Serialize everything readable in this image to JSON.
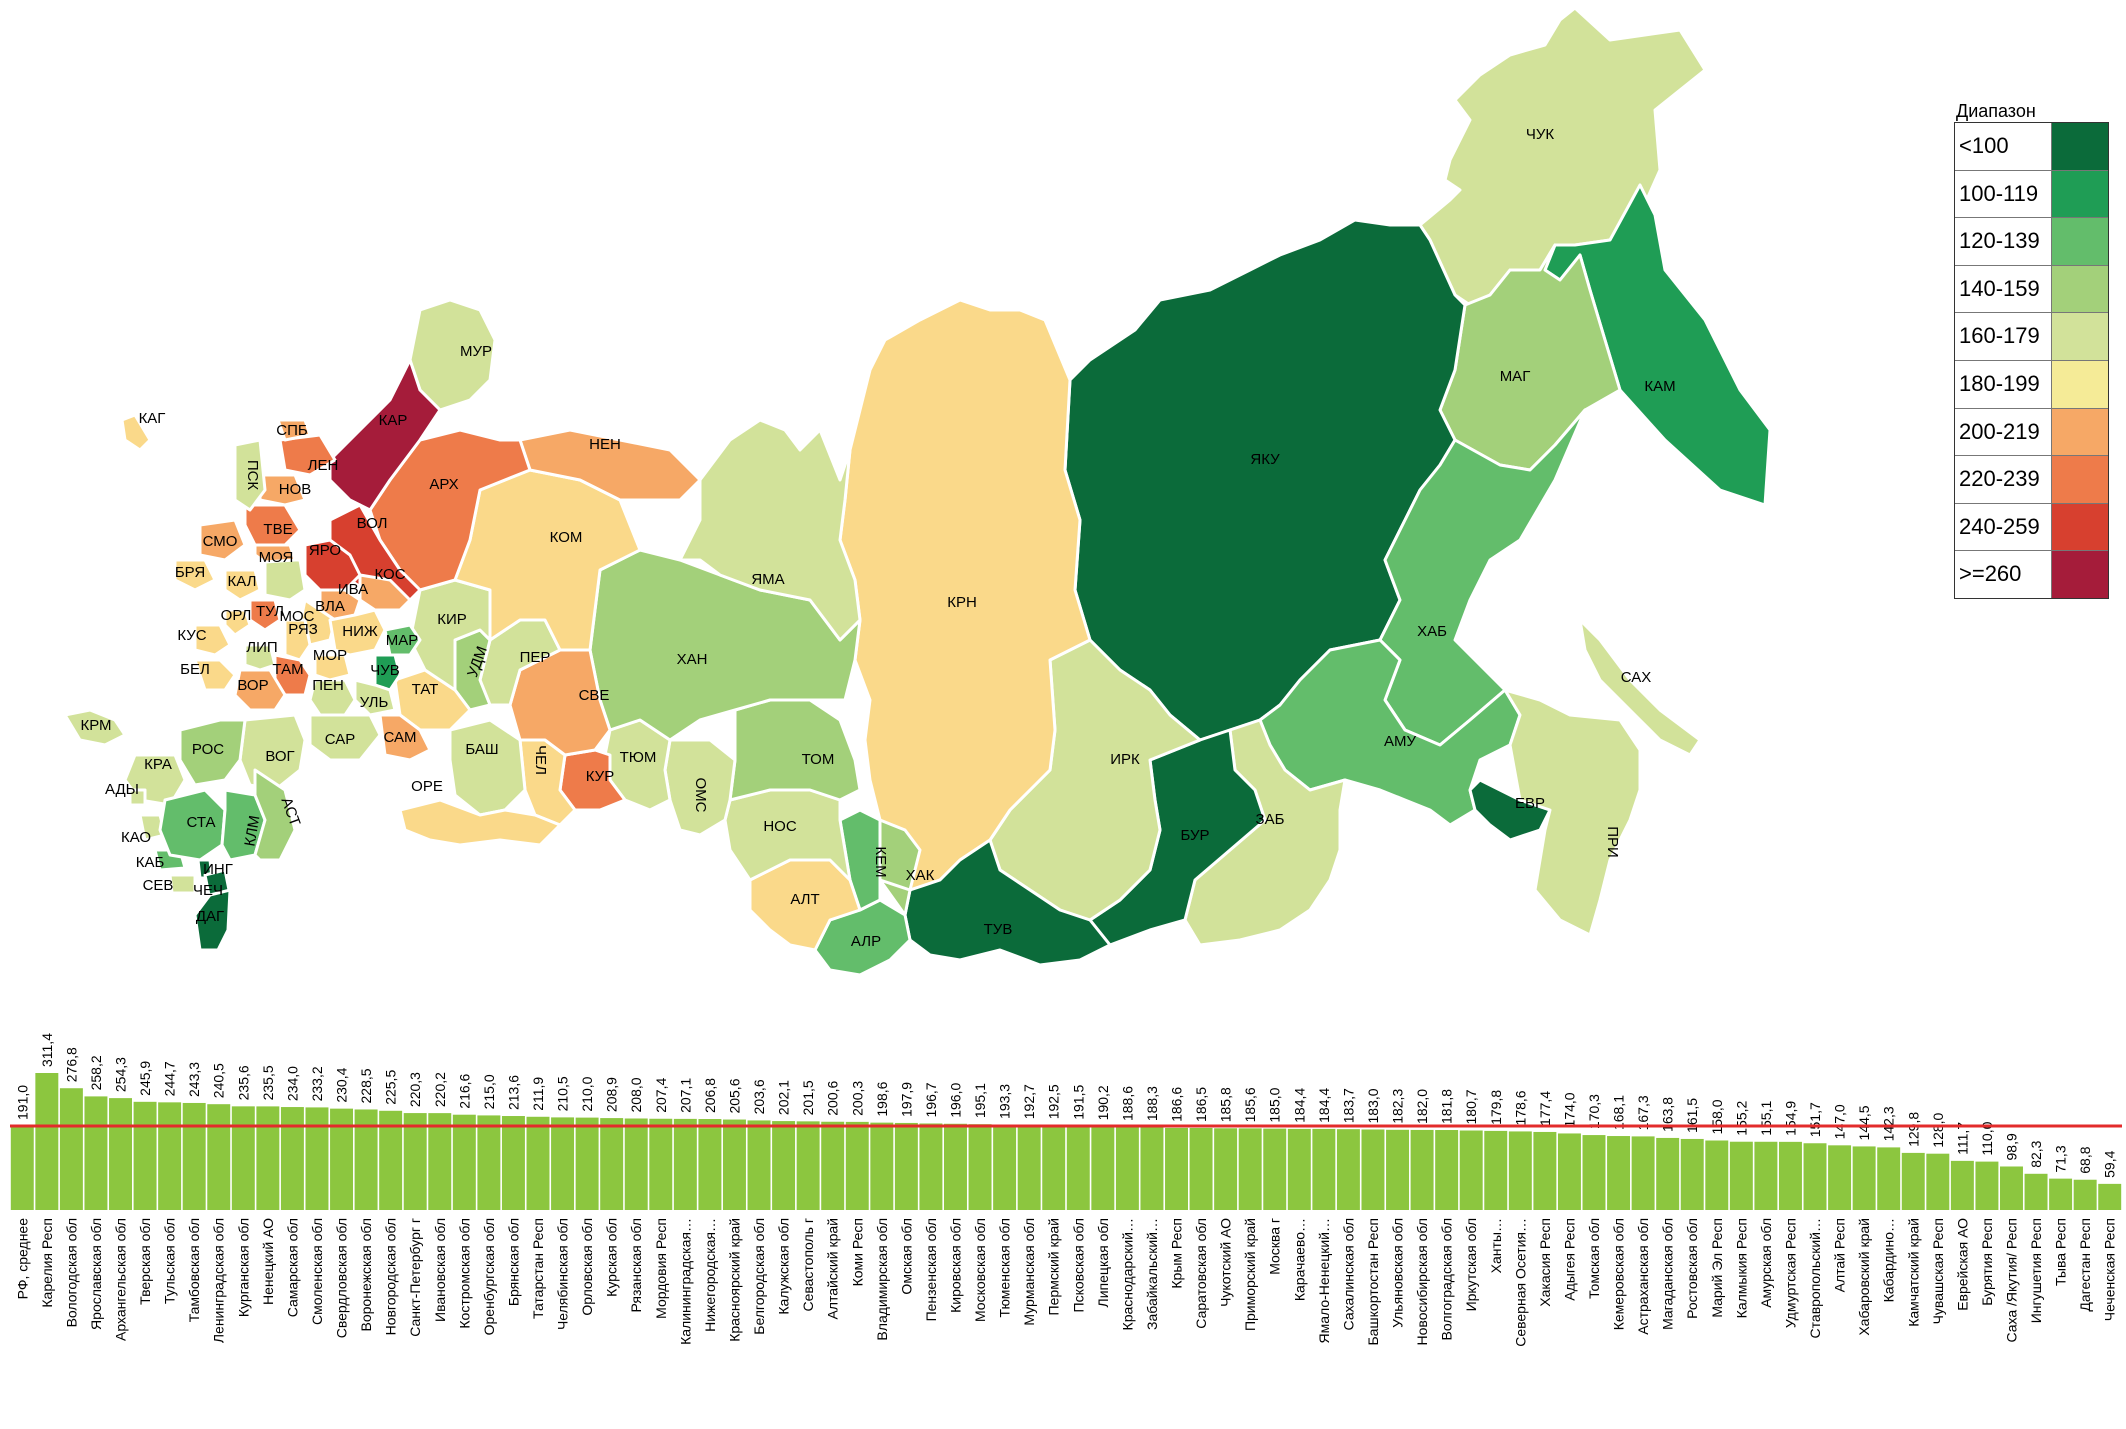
{
  "legend": {
    "title": "Диапазон",
    "items": [
      {
        "label": "<100",
        "color": "#0b6b3a"
      },
      {
        "label": "100-119",
        "color": "#1f9d55"
      },
      {
        "label": "120-139",
        "color": "#63bd6b"
      },
      {
        "label": "140-159",
        "color": "#a3d07a"
      },
      {
        "label": "160-179",
        "color": "#d2e29a"
      },
      {
        "label": "180-199",
        "color": "#f5eb97"
      },
      {
        "label": "200-219",
        "color": "#f6a866"
      },
      {
        "label": "220-239",
        "color": "#ee7b4a"
      },
      {
        "label": "240-259",
        "color": "#d7402f"
      },
      {
        "label": ">=260",
        "color": "#a51c3a"
      }
    ]
  },
  "regions": [
    {
      "code": "ЧУК",
      "color": "#d2e29a"
    },
    {
      "code": "МАГ",
      "color": "#a3d07a"
    },
    {
      "code": "КАМ",
      "color": "#1f9d55"
    },
    {
      "code": "ЯКУ",
      "color": "#0b6b3a"
    },
    {
      "code": "ХАБ",
      "color": "#63bd6b"
    },
    {
      "code": "САХ",
      "color": "#d2e29a"
    },
    {
      "code": "АМУ",
      "color": "#63bd6b"
    },
    {
      "code": "ЕВР",
      "color": "#0b6b3a"
    },
    {
      "code": "ПРИ",
      "color": "#d2e29a"
    },
    {
      "code": "ЗАБ",
      "color": "#d2e29a"
    },
    {
      "code": "БУР",
      "color": "#0b6b3a"
    },
    {
      "code": "ИРК",
      "color": "#d2e29a"
    },
    {
      "code": "КРН",
      "color": "#fad98a"
    },
    {
      "code": "ТУВ",
      "color": "#0b6b3a"
    },
    {
      "code": "ХАК",
      "color": "#a3d07a"
    },
    {
      "code": "АЛР",
      "color": "#63bd6b"
    },
    {
      "code": "КЕМ",
      "color": "#63bd6b"
    },
    {
      "code": "АЛТ",
      "color": "#fad98a"
    },
    {
      "code": "НОС",
      "color": "#d2e29a"
    },
    {
      "code": "ТОМ",
      "color": "#a3d07a"
    },
    {
      "code": "ОМС",
      "color": "#d2e29a"
    },
    {
      "code": "ТЮМ",
      "color": "#d2e29a"
    },
    {
      "code": "ХАН",
      "color": "#a3d07a"
    },
    {
      "code": "ЯМА",
      "color": "#d2e29a"
    },
    {
      "code": "КУР",
      "color": "#ee7b4a"
    },
    {
      "code": "ЧЕЛ",
      "color": "#fad98a"
    },
    {
      "code": "СВЕ",
      "color": "#f6a866"
    },
    {
      "code": "ПЕР",
      "color": "#d2e29a"
    },
    {
      "code": "БАШ",
      "color": "#d2e29a"
    },
    {
      "code": "ОРЕ",
      "color": "#fad98a"
    },
    {
      "code": "УДМ",
      "color": "#a3d07a"
    },
    {
      "code": "ТАТ",
      "color": "#fad98a"
    },
    {
      "code": "КИР",
      "color": "#d2e29a"
    },
    {
      "code": "КОМ",
      "color": "#fad98a"
    },
    {
      "code": "НЕН",
      "color": "#f6a866"
    },
    {
      "code": "АРХ",
      "color": "#ee7b4a"
    },
    {
      "code": "МУР",
      "color": "#d2e29a"
    },
    {
      "code": "КАР",
      "color": "#a51c3a"
    },
    {
      "code": "ВОЛ",
      "color": "#d7402f"
    },
    {
      "code": "КОС",
      "color": "#f6a866"
    },
    {
      "code": "ЯРО",
      "color": "#d7402f"
    },
    {
      "code": "ИВА",
      "color": "#f6a866"
    },
    {
      "code": "ВЛА",
      "color": "#fad98a"
    },
    {
      "code": "НИЖ",
      "color": "#fad98a"
    },
    {
      "code": "МАР",
      "color": "#63bd6b"
    },
    {
      "code": "ЧУВ",
      "color": "#1f9d55"
    },
    {
      "code": "УЛЬ",
      "color": "#d2e29a"
    },
    {
      "code": "САМ",
      "color": "#f6a866"
    },
    {
      "code": "ПЕН",
      "color": "#d2e29a"
    },
    {
      "code": "МОР",
      "color": "#fad98a"
    },
    {
      "code": "САР",
      "color": "#d2e29a"
    },
    {
      "code": "РЯЗ",
      "color": "#fad98a"
    },
    {
      "code": "ТАМ",
      "color": "#ee7b4a"
    },
    {
      "code": "ЛИП",
      "color": "#d2e29a"
    },
    {
      "code": "ВОР",
      "color": "#f6a866"
    },
    {
      "code": "БЕЛ",
      "color": "#fad98a"
    },
    {
      "code": "КУС",
      "color": "#fad98a"
    },
    {
      "code": "ОРЛ",
      "color": "#fad98a"
    },
    {
      "code": "ТУЛ",
      "color": "#ee7b4a"
    },
    {
      "code": "МОС",
      "color": "#d2e29a"
    },
    {
      "code": "КАЛ",
      "color": "#fad98a"
    },
    {
      "code": "БРЯ",
      "color": "#fad98a"
    },
    {
      "code": "СМО",
      "color": "#f6a866"
    },
    {
      "code": "МОЯ",
      "color": "#f6a866"
    },
    {
      "code": "ТВЕ",
      "color": "#ee7b4a"
    },
    {
      "code": "НОВ",
      "color": "#f6a866"
    },
    {
      "code": "ЛЕН",
      "color": "#ee7b4a"
    },
    {
      "code": "СПБ",
      "color": "#f6a866"
    },
    {
      "code": "ПСК",
      "color": "#d2e29a"
    },
    {
      "code": "КАГ",
      "color": "#fad98a"
    },
    {
      "code": "ВОГ",
      "color": "#d2e29a"
    },
    {
      "code": "РОС",
      "color": "#a3d07a"
    },
    {
      "code": "КРА",
      "color": "#d2e29a"
    },
    {
      "code": "АДЫ",
      "color": "#d2e29a"
    },
    {
      "code": "КАО",
      "color": "#d2e29a"
    },
    {
      "code": "КАБ",
      "color": "#63bd6b"
    },
    {
      "code": "СЕВ",
      "color": "#d2e29a"
    },
    {
      "code": "ИНГ",
      "color": "#0b6b3a"
    },
    {
      "code": "ЧЕЧ",
      "color": "#0b6b3a"
    },
    {
      "code": "ДАГ",
      "color": "#0b6b3a"
    },
    {
      "code": "СТА",
      "color": "#63bd6b"
    },
    {
      "code": "КЛМ",
      "color": "#63bd6b"
    },
    {
      "code": "АСТ",
      "color": "#a3d07a"
    },
    {
      "code": "КРМ",
      "color": "#d2e29a"
    }
  ],
  "chart_data": {
    "type": "bar",
    "categories": [
      "РФ, среднее",
      "Карелия Респ",
      "Вологодская обл",
      "Ярославская обл",
      "Архангельская обл",
      "Тверская обл",
      "Тульская обл",
      "Тамбовская обл",
      "Ленинградская обл",
      "Курганская обл",
      "Ненецкий АО",
      "Самарская обл",
      "Смоленская обл",
      "Свердловская обл",
      "Воронежская обл",
      "Новгородская обл",
      "Санкт-Петербург г",
      "Ивановская обл",
      "Костромская обл",
      "Оренбургская обл",
      "Брянская обл",
      "Татарстан Респ",
      "Челябинская обл",
      "Орловская обл",
      "Курская обл",
      "Рязанская обл",
      "Мордовия Респ",
      "Калининградская…",
      "Нижегородская…",
      "Красноярский край",
      "Белгородская обл",
      "Калужская обл",
      "Севастополь г",
      "Алтайский край",
      "Коми Респ",
      "Владимирская обл",
      "Омская обл",
      "Пензенская обл",
      "Кировская обл",
      "Московская обл",
      "Тюменская обл",
      "Мурманская обл",
      "Пермский край",
      "Псковская обл",
      "Липецкая обл",
      "Краснодарский…",
      "Забайкальский…",
      "Крым Респ",
      "Саратовская обл",
      "Чукотский АО",
      "Приморский край",
      "Москва г",
      "Карачаево…",
      "Ямало-Ненецкий…",
      "Сахалинская обл",
      "Башкортостан Респ",
      "Ульяновская обл",
      "Новосибирская обл",
      "Волгоградская обл",
      "Иркутская обл",
      "Ханты…",
      "Северная Осетия…",
      "Хакасия Респ",
      "Адыгея Респ",
      "Томская обл",
      "Кемеровская обл",
      "Астраханская обл",
      "Магаданская обл",
      "Ростовская обл",
      "Марий Эл Респ",
      "Калмыкия Респ",
      "Амурская обл",
      "Удмуртская Респ",
      "Ставропольский…",
      "Алтай Респ",
      "Хабаровский край",
      "Кабардино…",
      "Камчатский край",
      "Чувашская Респ",
      "Еврейская АО",
      "Бурятия Респ",
      "Саха /Якутия/ Респ",
      "Ингушетия Респ",
      "Тыва Респ",
      "Дагестан Респ",
      "Чеченская Респ"
    ],
    "values": [
      191.0,
      311.4,
      276.8,
      258.2,
      254.3,
      245.9,
      244.7,
      243.3,
      240.5,
      235.6,
      235.5,
      234.0,
      233.2,
      230.4,
      228.5,
      225.5,
      220.3,
      220.2,
      216.6,
      215.0,
      213.6,
      211.9,
      210.5,
      210.0,
      208.9,
      208.0,
      207.4,
      207.1,
      206.8,
      205.6,
      203.6,
      202.1,
      201.5,
      200.6,
      200.3,
      198.6,
      197.9,
      196.7,
      196.0,
      195.1,
      193.3,
      192.7,
      192.5,
      191.5,
      190.2,
      188.6,
      188.3,
      186.6,
      186.5,
      185.8,
      185.6,
      185.0,
      184.4,
      184.4,
      183.7,
      183.0,
      182.3,
      182.0,
      181.8,
      180.7,
      179.8,
      178.6,
      177.4,
      174.0,
      170.3,
      168.1,
      167.3,
      163.8,
      161.5,
      158.0,
      155.2,
      155.1,
      154.9,
      151.7,
      147.0,
      144.5,
      142.3,
      129.8,
      128.0,
      111.7,
      110.0,
      98.9,
      82.3,
      71.3,
      68.8,
      59.4
    ],
    "value_labels": [
      "191,0",
      "311,4",
      "276,8",
      "258,2",
      "254,3",
      "245,9",
      "244,7",
      "243,3",
      "240,5",
      "235,6",
      "235,5",
      "234,0",
      "233,2",
      "230,4",
      "228,5",
      "225,5",
      "220,3",
      "220,2",
      "216,6",
      "215,0",
      "213,6",
      "211,9",
      "210,5",
      "210,0",
      "208,9",
      "208,0",
      "207,4",
      "207,1",
      "206,8",
      "205,6",
      "203,6",
      "202,1",
      "201,5",
      "200,6",
      "200,3",
      "198,6",
      "197,9",
      "196,7",
      "196,0",
      "195,1",
      "193,3",
      "192,7",
      "192,5",
      "191,5",
      "190,2",
      "188,6",
      "188,3",
      "186,6",
      "186,5",
      "185,8",
      "185,6",
      "185,0",
      "184,4",
      "184,4",
      "183,7",
      "183,0",
      "182,3",
      "182,0",
      "181,8",
      "180,7",
      "179,8",
      "178,6",
      "177,4",
      "174,0",
      "170,3",
      "168,1",
      "167,3",
      "163,8",
      "161,5",
      "158,0",
      "155,2",
      "155,1",
      "154,9",
      "151,7",
      "147,0",
      "144,5",
      "142,3",
      "129,8",
      "128,0",
      "111,7",
      "110,0",
      "98,9",
      "82,3",
      "71,3",
      "68,8",
      "59,4"
    ],
    "reference_line": 191.0,
    "bar_color": "#8cc63f",
    "reference_color": "#e32b2b",
    "ylim": [
      0,
      311.4
    ]
  }
}
